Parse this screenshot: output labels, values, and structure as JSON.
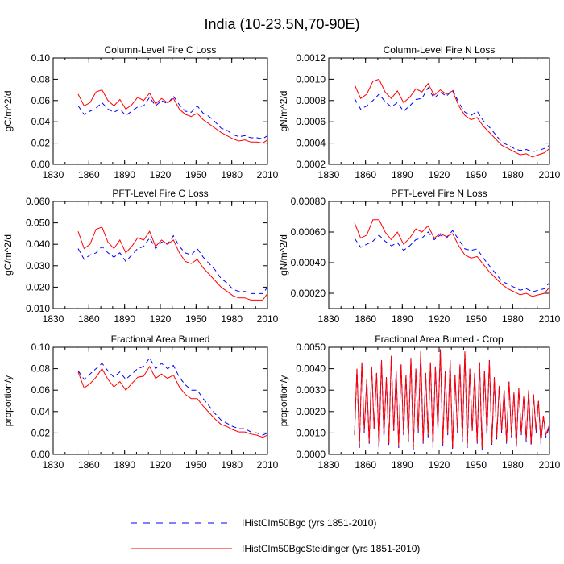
{
  "figure": {
    "title": "India (10-23.5N,70-90E)"
  },
  "legend": {
    "items": [
      {
        "label": "IHistClm50Bgc (yrs 1851-2010)",
        "color": "#0000ff",
        "style": "dashed"
      },
      {
        "label": "IHistClm50BgcSteidinger (yrs 1851-2010)",
        "color": "#ff0000",
        "style": "solid"
      }
    ]
  },
  "chart_data": [
    {
      "type": "line",
      "title": "Column-Level Fire C Loss",
      "ylabel": "gC/m^2/d",
      "xlim": [
        1830,
        2010
      ],
      "ylim": [
        0.0,
        0.1
      ],
      "xticks": [
        "1830",
        "1860",
        "1890",
        "1920",
        "1950",
        "1980",
        "2010"
      ],
      "yticks": [
        "0.00",
        "0.02",
        "0.04",
        "0.06",
        "0.08",
        "0.10"
      ],
      "x": [
        1851,
        1856,
        1861,
        1866,
        1871,
        1876,
        1881,
        1886,
        1891,
        1896,
        1901,
        1906,
        1911,
        1916,
        1921,
        1926,
        1931,
        1936,
        1941,
        1946,
        1951,
        1956,
        1961,
        1966,
        1971,
        1976,
        1981,
        1986,
        1991,
        1996,
        2001,
        2006,
        2010
      ],
      "series": [
        {
          "name": "IHistClm50Bgc (yrs 1851-2010)",
          "values": [
            0.055,
            0.047,
            0.05,
            0.053,
            0.058,
            0.052,
            0.049,
            0.052,
            0.046,
            0.05,
            0.054,
            0.055,
            0.063,
            0.055,
            0.06,
            0.057,
            0.064,
            0.056,
            0.05,
            0.049,
            0.055,
            0.048,
            0.045,
            0.04,
            0.034,
            0.032,
            0.028,
            0.026,
            0.027,
            0.025,
            0.025,
            0.024,
            0.027
          ]
        },
        {
          "name": "IHistClm50BgcSteidinger (yrs 1851-2010)",
          "values": [
            0.066,
            0.055,
            0.058,
            0.068,
            0.07,
            0.06,
            0.055,
            0.061,
            0.052,
            0.056,
            0.063,
            0.06,
            0.067,
            0.057,
            0.062,
            0.058,
            0.062,
            0.052,
            0.047,
            0.045,
            0.048,
            0.042,
            0.038,
            0.034,
            0.03,
            0.027,
            0.024,
            0.022,
            0.023,
            0.021,
            0.021,
            0.02,
            0.023
          ]
        }
      ]
    },
    {
      "type": "line",
      "title": "Column-Level Fire N Loss",
      "ylabel": "gN/m^2/d",
      "xlim": [
        1830,
        2010
      ],
      "ylim": [
        0.0002,
        0.0012
      ],
      "xticks": [
        "1830",
        "1860",
        "1890",
        "1920",
        "1950",
        "1980",
        "2010"
      ],
      "yticks": [
        "0.0002",
        "0.0004",
        "0.0006",
        "0.0008",
        "0.0010",
        "0.0012"
      ],
      "x": [
        1851,
        1856,
        1861,
        1866,
        1871,
        1876,
        1881,
        1886,
        1891,
        1896,
        1901,
        1906,
        1911,
        1916,
        1921,
        1926,
        1931,
        1936,
        1941,
        1946,
        1951,
        1956,
        1961,
        1966,
        1971,
        1976,
        1981,
        1986,
        1991,
        1996,
        2001,
        2006,
        2010
      ],
      "series": [
        {
          "name": "IHistClm50Bgc (yrs 1851-2010)",
          "values": [
            0.00082,
            0.00072,
            0.00075,
            0.0008,
            0.00086,
            0.00079,
            0.00074,
            0.00078,
            0.0007,
            0.00075,
            0.00081,
            0.00082,
            0.00092,
            0.00082,
            0.00088,
            0.00084,
            0.0009,
            0.00078,
            0.00069,
            0.00066,
            0.0007,
            0.00061,
            0.00055,
            0.00048,
            0.00041,
            0.00038,
            0.00035,
            0.00033,
            0.00034,
            0.00032,
            0.00033,
            0.00035,
            0.00038
          ]
        },
        {
          "name": "IHistClm50BgcSteidinger (yrs 1851-2010)",
          "values": [
            0.00095,
            0.00082,
            0.00086,
            0.00098,
            0.001,
            0.00088,
            0.00082,
            0.00089,
            0.00078,
            0.00083,
            0.00091,
            0.00088,
            0.00096,
            0.00085,
            0.0009,
            0.00086,
            0.00089,
            0.00075,
            0.00066,
            0.00062,
            0.00064,
            0.00056,
            0.0005,
            0.00044,
            0.00038,
            0.00035,
            0.00032,
            0.00029,
            0.0003,
            0.00027,
            0.00029,
            0.00031,
            0.00035
          ]
        }
      ]
    },
    {
      "type": "line",
      "title": "PFT-Level Fire C Loss",
      "ylabel": "gC/m^2/d",
      "xlim": [
        1830,
        2010
      ],
      "ylim": [
        0.01,
        0.06
      ],
      "xticks": [
        "1830",
        "1860",
        "1890",
        "1920",
        "1950",
        "1980",
        "2010"
      ],
      "yticks": [
        "0.010",
        "0.020",
        "0.030",
        "0.040",
        "0.050",
        "0.060"
      ],
      "x": [
        1851,
        1856,
        1861,
        1866,
        1871,
        1876,
        1881,
        1886,
        1891,
        1896,
        1901,
        1906,
        1911,
        1916,
        1921,
        1926,
        1931,
        1936,
        1941,
        1946,
        1951,
        1956,
        1961,
        1966,
        1971,
        1976,
        1981,
        1986,
        1991,
        1996,
        2001,
        2006,
        2010
      ],
      "series": [
        {
          "name": "IHistClm50Bgc (yrs 1851-2010)",
          "values": [
            0.038,
            0.033,
            0.035,
            0.036,
            0.039,
            0.036,
            0.034,
            0.036,
            0.032,
            0.035,
            0.038,
            0.039,
            0.043,
            0.038,
            0.041,
            0.04,
            0.044,
            0.039,
            0.036,
            0.035,
            0.038,
            0.034,
            0.031,
            0.028,
            0.024,
            0.022,
            0.019,
            0.018,
            0.018,
            0.017,
            0.017,
            0.017,
            0.02
          ]
        },
        {
          "name": "IHistClm50BgcSteidinger (yrs 1851-2010)",
          "values": [
            0.046,
            0.038,
            0.04,
            0.047,
            0.048,
            0.041,
            0.038,
            0.042,
            0.036,
            0.039,
            0.043,
            0.042,
            0.046,
            0.039,
            0.042,
            0.04,
            0.042,
            0.036,
            0.032,
            0.031,
            0.033,
            0.029,
            0.026,
            0.023,
            0.02,
            0.018,
            0.016,
            0.015,
            0.015,
            0.014,
            0.014,
            0.014,
            0.017
          ]
        }
      ]
    },
    {
      "type": "line",
      "title": "PFT-Level Fire N Loss",
      "ylabel": "gN/m^2/d",
      "xlim": [
        1830,
        2010
      ],
      "ylim": [
        0.0001,
        0.0008
      ],
      "xticks": [
        "1830",
        "1860",
        "1890",
        "1920",
        "1950",
        "1980",
        "2010"
      ],
      "yticks": [
        "0.00020",
        "0.00040",
        "0.00060",
        "0.00080"
      ],
      "x": [
        1851,
        1856,
        1861,
        1866,
        1871,
        1876,
        1881,
        1886,
        1891,
        1896,
        1901,
        1906,
        1911,
        1916,
        1921,
        1926,
        1931,
        1936,
        1941,
        1946,
        1951,
        1956,
        1961,
        1966,
        1971,
        1976,
        1981,
        1986,
        1991,
        1996,
        2001,
        2006,
        2010
      ],
      "series": [
        {
          "name": "IHistClm50Bgc (yrs 1851-2010)",
          "values": [
            0.00056,
            0.0005,
            0.00052,
            0.00054,
            0.00058,
            0.00054,
            0.00051,
            0.00053,
            0.00048,
            0.00051,
            0.00055,
            0.00056,
            0.0006,
            0.00055,
            0.00058,
            0.00056,
            0.00061,
            0.00055,
            0.00049,
            0.00048,
            0.00049,
            0.00043,
            0.00038,
            0.00033,
            0.00028,
            0.00026,
            0.00024,
            0.00022,
            0.00023,
            0.00021,
            0.00022,
            0.00023,
            0.00027
          ]
        },
        {
          "name": "IHistClm50BgcSteidinger (yrs 1851-2010)",
          "values": [
            0.00066,
            0.00056,
            0.00058,
            0.00068,
            0.00068,
            0.0006,
            0.00055,
            0.0006,
            0.00052,
            0.00056,
            0.00062,
            0.0006,
            0.00064,
            0.00056,
            0.00059,
            0.00057,
            0.00059,
            0.00051,
            0.00045,
            0.00043,
            0.00044,
            0.00039,
            0.00034,
            0.0003,
            0.00026,
            0.00023,
            0.00021,
            0.00019,
            0.0002,
            0.00018,
            0.00019,
            0.0002,
            0.00024
          ]
        }
      ]
    },
    {
      "type": "line",
      "title": "Fractional Area Burned",
      "ylabel": "proportion/y",
      "xlim": [
        1830,
        2010
      ],
      "ylim": [
        0.0,
        0.1
      ],
      "xticks": [
        "1830",
        "1860",
        "1890",
        "1920",
        "1950",
        "1980",
        "2010"
      ],
      "yticks": [
        "0.00",
        "0.02",
        "0.04",
        "0.06",
        "0.08",
        "0.10"
      ],
      "x": [
        1851,
        1856,
        1861,
        1866,
        1871,
        1876,
        1881,
        1886,
        1891,
        1896,
        1901,
        1906,
        1911,
        1916,
        1921,
        1926,
        1931,
        1936,
        1941,
        1946,
        1951,
        1956,
        1961,
        1966,
        1971,
        1976,
        1981,
        1986,
        1991,
        1996,
        2001,
        2006,
        2010
      ],
      "series": [
        {
          "name": "IHistClm50Bgc (yrs 1851-2010)",
          "values": [
            0.078,
            0.07,
            0.075,
            0.08,
            0.085,
            0.078,
            0.072,
            0.077,
            0.07,
            0.075,
            0.08,
            0.082,
            0.09,
            0.08,
            0.085,
            0.08,
            0.083,
            0.072,
            0.065,
            0.06,
            0.06,
            0.052,
            0.045,
            0.038,
            0.032,
            0.029,
            0.026,
            0.024,
            0.024,
            0.021,
            0.02,
            0.018,
            0.02
          ]
        },
        {
          "name": "IHistClm50BgcSteidinger (yrs 1851-2010)",
          "values": [
            0.077,
            0.062,
            0.066,
            0.072,
            0.08,
            0.07,
            0.063,
            0.068,
            0.06,
            0.066,
            0.072,
            0.073,
            0.082,
            0.071,
            0.075,
            0.071,
            0.074,
            0.063,
            0.056,
            0.052,
            0.052,
            0.045,
            0.039,
            0.033,
            0.028,
            0.026,
            0.023,
            0.021,
            0.021,
            0.019,
            0.018,
            0.016,
            0.018
          ]
        }
      ]
    },
    {
      "type": "line",
      "title": "Fractional Area Burned - Crop",
      "ylabel": "proportion/y",
      "xlim": [
        1830,
        2010
      ],
      "ylim": [
        0.0,
        0.005
      ],
      "xticks": [
        "1830",
        "1860",
        "1890",
        "1920",
        "1950",
        "1980",
        "2010"
      ],
      "yticks": [
        "0.0000",
        "0.0010",
        "0.0020",
        "0.0030",
        "0.0040",
        "0.0050"
      ],
      "x": [
        1851,
        1853,
        1855,
        1857,
        1859,
        1861,
        1863,
        1865,
        1867,
        1869,
        1871,
        1873,
        1875,
        1877,
        1879,
        1881,
        1883,
        1885,
        1887,
        1889,
        1891,
        1893,
        1895,
        1897,
        1899,
        1901,
        1903,
        1905,
        1907,
        1909,
        1911,
        1913,
        1915,
        1917,
        1919,
        1921,
        1923,
        1925,
        1927,
        1929,
        1931,
        1933,
        1935,
        1937,
        1939,
        1941,
        1943,
        1945,
        1947,
        1949,
        1951,
        1953,
        1955,
        1957,
        1959,
        1961,
        1963,
        1965,
        1967,
        1969,
        1971,
        1973,
        1975,
        1977,
        1979,
        1981,
        1983,
        1985,
        1987,
        1989,
        1991,
        1993,
        1995,
        1997,
        1999,
        2001,
        2003,
        2005,
        2007,
        2010
      ],
      "series": [
        {
          "name": "IHistClm50Bgc (yrs 1851-2010)",
          "values": [
            0.0009,
            0.004,
            0.0003,
            0.0043,
            0.001,
            0.0035,
            0.0005,
            0.0041,
            0.0012,
            0.0038,
            0.0002,
            0.0044,
            0.0008,
            0.0036,
            0.0004,
            0.0046,
            0.0011,
            0.0039,
            0.0003,
            0.0042,
            0.0009,
            0.0037,
            0.0006,
            0.0045,
            0.0002,
            0.004,
            0.001,
            0.0048,
            0.0005,
            0.0038,
            0.0008,
            0.0043,
            0.0003,
            0.0041,
            0.0012,
            0.0049,
            0.0004,
            0.0039,
            0.0009,
            0.0044,
            0.0002,
            0.0037,
            0.001,
            0.0042,
            0.0006,
            0.0048,
            0.0003,
            0.004,
            0.0011,
            0.0038,
            0.0005,
            0.0043,
            0.0002,
            0.0039,
            0.0009,
            0.0044,
            0.0004,
            0.0036,
            0.0007,
            0.0032,
            0.001,
            0.003,
            0.0005,
            0.0034,
            0.0008,
            0.0029,
            0.0003,
            0.0031,
            0.0009,
            0.0027,
            0.0006,
            0.003,
            0.0004,
            0.0028,
            0.001,
            0.0025,
            0.0005,
            0.0018,
            0.0008,
            0.0013
          ]
        },
        {
          "name": "IHistClm50BgcSteidinger (yrs 1851-2010)",
          "values": [
            0.0009,
            0.004,
            0.0004,
            0.0043,
            0.0011,
            0.0035,
            0.0006,
            0.0041,
            0.0012,
            0.0038,
            0.0003,
            0.0044,
            0.0009,
            0.0036,
            0.0005,
            0.0046,
            0.0011,
            0.0039,
            0.0004,
            0.0042,
            0.001,
            0.0037,
            0.0007,
            0.0045,
            0.0003,
            0.004,
            0.0011,
            0.0048,
            0.0006,
            0.0038,
            0.0009,
            0.0043,
            0.0004,
            0.0041,
            0.0012,
            0.0049,
            0.0005,
            0.0039,
            0.001,
            0.0044,
            0.0003,
            0.0037,
            0.0011,
            0.0042,
            0.0007,
            0.0048,
            0.0004,
            0.004,
            0.0011,
            0.0038,
            0.0006,
            0.0043,
            0.0003,
            0.0039,
            0.001,
            0.0044,
            0.0005,
            0.0036,
            0.0008,
            0.0032,
            0.0011,
            0.003,
            0.0006,
            0.0034,
            0.0009,
            0.0029,
            0.0004,
            0.0031,
            0.001,
            0.0027,
            0.0007,
            0.003,
            0.0005,
            0.0028,
            0.0011,
            0.0025,
            0.0006,
            0.0018,
            0.0009,
            0.0014
          ]
        }
      ]
    }
  ]
}
